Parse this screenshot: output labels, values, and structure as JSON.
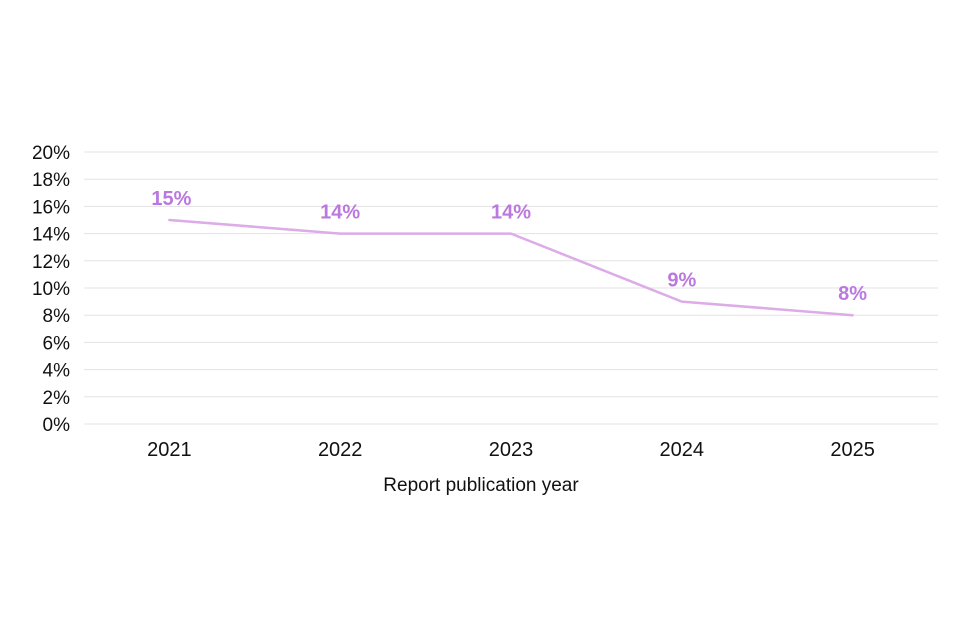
{
  "chart_data": {
    "type": "line",
    "categories": [
      "2021",
      "2022",
      "2023",
      "2024",
      "2025"
    ],
    "values": [
      15,
      14,
      14,
      9,
      8
    ],
    "point_labels": [
      "15%",
      "14%",
      "14%",
      "9%",
      "8%"
    ],
    "title": "",
    "xlabel": "Report publication year",
    "ylabel": "",
    "ylim": [
      0,
      20
    ],
    "ytick_step": 2,
    "ytick_labels": [
      "0%",
      "2%",
      "4%",
      "6%",
      "8%",
      "10%",
      "12%",
      "14%",
      "16%",
      "18%",
      "20%"
    ],
    "grid": true,
    "legend": false,
    "colors": {
      "line": "#dcabe8",
      "data_label": "#bb78de",
      "gridline": "#e3e3e3",
      "axis_text": "#111111",
      "background": "#ffffff"
    }
  }
}
